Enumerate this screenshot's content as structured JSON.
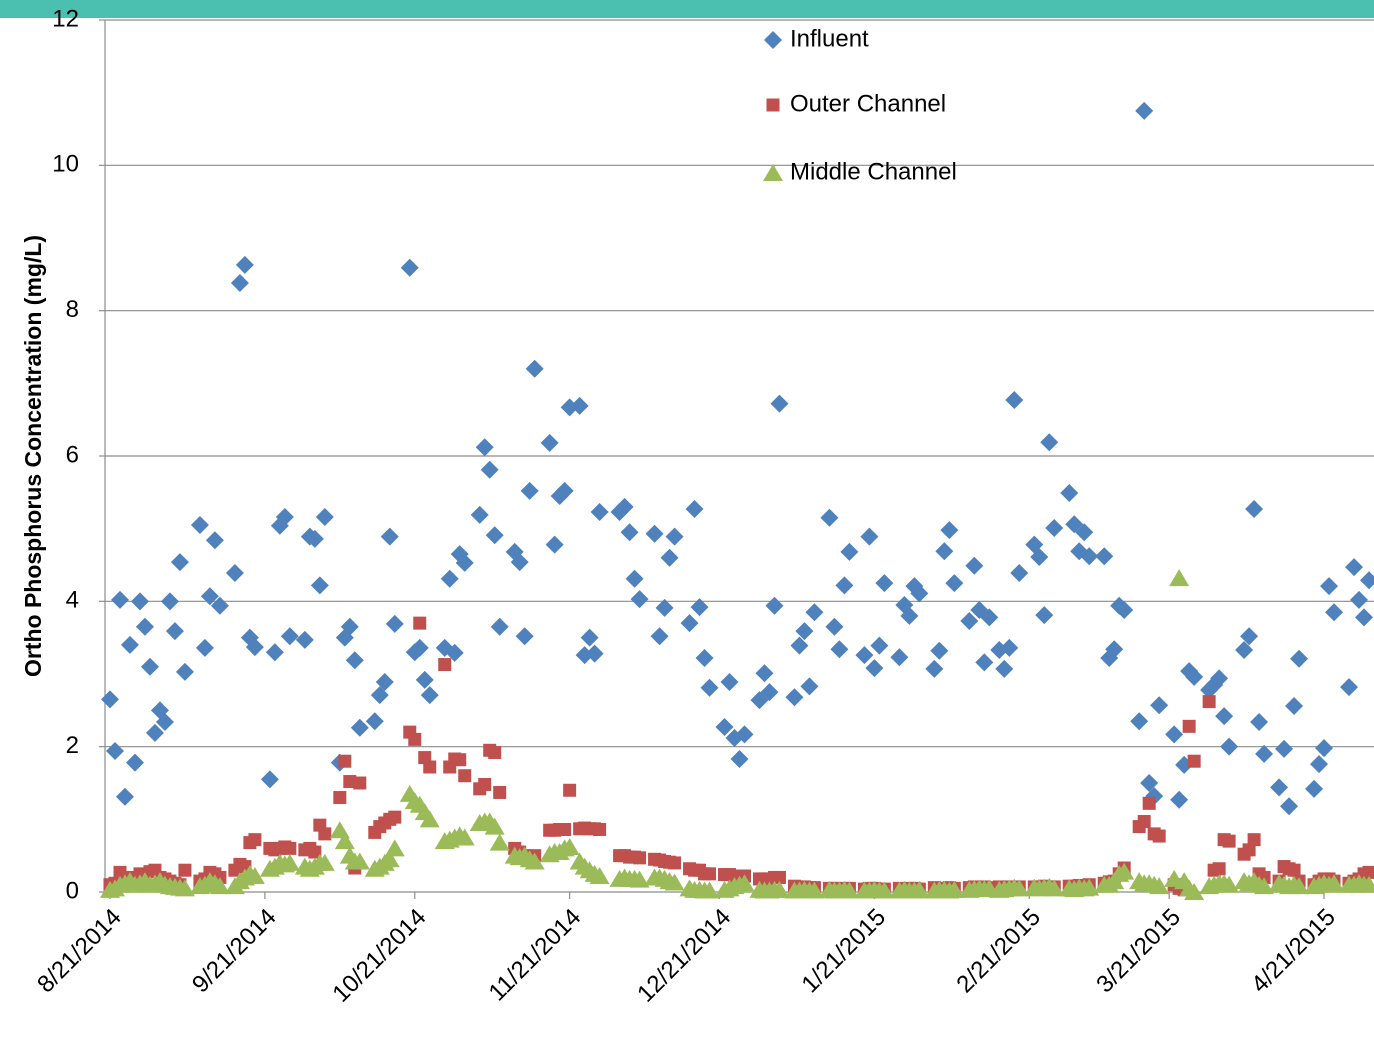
{
  "chart_data": {
    "type": "scatter",
    "y_label": "Ortho Phosphorus Concentration (mg/L)",
    "xlim": [
      "8/20/2014",
      "5/1/2015"
    ],
    "xticks": [
      "8/21/2014",
      "9/21/2014",
      "10/21/2014",
      "11/21/2014",
      "12/21/2014",
      "1/21/2015",
      "2/21/2015",
      "3/21/2015",
      "4/21/2015"
    ],
    "ylim": [
      0,
      12
    ],
    "yticks": [
      0,
      2,
      4,
      6,
      8,
      10,
      12
    ],
    "grid": true,
    "x": [
      "8/21/2014",
      "8/22/2014",
      "8/23/2014",
      "8/24/2014",
      "8/25/2014",
      "8/26/2014",
      "8/27/2014",
      "8/28/2014",
      "8/29/2014",
      "8/30/2014",
      "8/31/2014",
      "9/1/2014",
      "9/2/2014",
      "9/3/2014",
      "9/4/2014",
      "9/5/2014",
      "9/8/2014",
      "9/9/2014",
      "9/10/2014",
      "9/11/2014",
      "9/12/2014",
      "9/15/2014",
      "9/16/2014",
      "9/17/2014",
      "9/18/2014",
      "9/19/2014",
      "9/22/2014",
      "9/23/2014",
      "9/24/2014",
      "9/25/2014",
      "9/26/2014",
      "9/29/2014",
      "9/30/2014",
      "10/1/2014",
      "10/2/2014",
      "10/3/2014",
      "10/6/2014",
      "10/7/2014",
      "10/8/2014",
      "10/9/2014",
      "10/10/2014",
      "10/13/2014",
      "10/14/2014",
      "10/15/2014",
      "10/16/2014",
      "10/17/2014",
      "10/20/2014",
      "10/21/2014",
      "10/22/2014",
      "10/23/2014",
      "10/24/2014",
      "10/27/2014",
      "10/28/2014",
      "10/29/2014",
      "10/30/2014",
      "10/31/2014",
      "11/3/2014",
      "11/4/2014",
      "11/5/2014",
      "11/6/2014",
      "11/7/2014",
      "11/10/2014",
      "11/11/2014",
      "11/12/2014",
      "11/13/2014",
      "11/14/2014",
      "11/17/2014",
      "11/18/2014",
      "11/19/2014",
      "11/20/2014",
      "11/21/2014",
      "11/23/2014",
      "11/24/2014",
      "11/25/2014",
      "11/26/2014",
      "11/27/2014",
      "12/1/2014",
      "12/2/2014",
      "12/3/2014",
      "12/4/2014",
      "12/5/2014",
      "12/8/2014",
      "12/9/2014",
      "12/10/2014",
      "12/11/2014",
      "12/12/2014",
      "12/15/2014",
      "12/16/2014",
      "12/17/2014",
      "12/18/2014",
      "12/19/2014",
      "12/22/2014",
      "12/23/2014",
      "12/24/2014",
      "12/25/2014",
      "12/26/2014",
      "12/29/2014",
      "12/30/2014",
      "12/31/2014",
      "1/1/2015",
      "1/2/2015",
      "1/5/2015",
      "1/6/2015",
      "1/7/2015",
      "1/8/2015",
      "1/9/2015",
      "1/12/2015",
      "1/13/2015",
      "1/14/2015",
      "1/15/2015",
      "1/16/2015",
      "1/19/2015",
      "1/20/2015",
      "1/21/2015",
      "1/22/2015",
      "1/23/2015",
      "1/26/2015",
      "1/27/2015",
      "1/28/2015",
      "1/29/2015",
      "1/30/2015",
      "2/2/2015",
      "2/3/2015",
      "2/4/2015",
      "2/5/2015",
      "2/6/2015",
      "2/9/2015",
      "2/10/2015",
      "2/11/2015",
      "2/12/2015",
      "2/13/2015",
      "2/15/2015",
      "2/16/2015",
      "2/17/2015",
      "2/18/2015",
      "2/19/2015",
      "2/22/2015",
      "2/23/2015",
      "2/24/2015",
      "2/25/2015",
      "2/26/2015",
      "3/1/2015",
      "3/2/2015",
      "3/3/2015",
      "3/4/2015",
      "3/5/2015",
      "3/8/2015",
      "3/9/2015",
      "3/10/2015",
      "3/11/2015",
      "3/12/2015",
      "3/15/2015",
      "3/16/2015",
      "3/17/2015",
      "3/18/2015",
      "3/19/2015",
      "3/22/2015",
      "3/23/2015",
      "3/24/2015",
      "3/25/2015",
      "3/26/2015",
      "3/29/2015",
      "3/30/2015",
      "3/31/2015",
      "4/1/2015",
      "4/2/2015",
      "4/5/2015",
      "4/6/2015",
      "4/7/2015",
      "4/8/2015",
      "4/9/2015",
      "4/12/2015",
      "4/13/2015",
      "4/14/2015",
      "4/15/2015",
      "4/16/2015",
      "4/19/2015",
      "4/20/2015",
      "4/21/2015",
      "4/22/2015",
      "4/23/2015",
      "4/26/2015",
      "4/27/2015",
      "4/28/2015",
      "4/29/2015",
      "4/30/2015"
    ],
    "series": [
      {
        "name": "Influent",
        "color": "#4f81bd",
        "marker": "diamond",
        "values": [
          2.65,
          1.94,
          4.02,
          1.31,
          3.4,
          1.78,
          4.0,
          3.65,
          3.1,
          2.19,
          2.5,
          2.34,
          4.0,
          3.59,
          4.54,
          3.03,
          5.05,
          3.36,
          4.07,
          4.84,
          3.94,
          4.39,
          8.38,
          8.63,
          3.5,
          3.37,
          1.55,
          3.3,
          5.04,
          5.16,
          3.52,
          3.47,
          4.89,
          4.86,
          4.22,
          5.16,
          1.78,
          3.5,
          3.65,
          3.19,
          2.26,
          2.35,
          2.71,
          2.89,
          4.89,
          3.69,
          8.59,
          3.3,
          3.36,
          2.92,
          2.71,
          3.36,
          4.31,
          3.29,
          4.65,
          4.53,
          5.19,
          6.12,
          5.81,
          4.91,
          3.65,
          4.68,
          4.54,
          3.52,
          5.52,
          7.2,
          6.18,
          4.78,
          5.45,
          5.52,
          6.67,
          6.69,
          3.26,
          3.5,
          3.28,
          5.23,
          5.23,
          5.3,
          4.95,
          4.31,
          4.03,
          4.93,
          3.52,
          3.91,
          4.6,
          4.89,
          3.7,
          5.27,
          3.92,
          3.22,
          2.81,
          2.27,
          2.89,
          2.12,
          1.83,
          2.17,
          2.64,
          3.01,
          2.75,
          3.94,
          6.72,
          2.68,
          3.39,
          3.59,
          2.83,
          3.85,
          5.15,
          3.65,
          3.34,
          4.22,
          4.68,
          3.26,
          4.89,
          3.08,
          3.39,
          4.25,
          3.23,
          3.95,
          3.8,
          4.21,
          4.11,
          3.07,
          3.32,
          4.69,
          4.98,
          4.25,
          3.73,
          4.49,
          3.88,
          3.16,
          3.78,
          3.33,
          3.07,
          3.36,
          6.77,
          4.39,
          4.78,
          4.61,
          3.81,
          6.19,
          5.01,
          5.49,
          5.06,
          4.69,
          4.95,
          4.62,
          4.62,
          3.22,
          3.34,
          3.94,
          3.88,
          2.35,
          10.75,
          1.5,
          1.32,
          2.57,
          2.17,
          1.27,
          1.75,
          3.04,
          2.96,
          2.78,
          2.85,
          2.94,
          2.42,
          2.0,
          3.33,
          3.52,
          5.27,
          2.34,
          1.9,
          1.44,
          1.97,
          1.18,
          2.56,
          3.21,
          1.42,
          1.76,
          1.98,
          4.21,
          3.85,
          2.82,
          4.47,
          4.02,
          3.78,
          4.29
        ]
      },
      {
        "name": "Outer Channel",
        "color": "#c0504d",
        "marker": "square",
        "values": [
          0.1,
          0.12,
          0.27,
          0.15,
          0.2,
          0.2,
          0.25,
          0.22,
          0.28,
          0.3,
          0.2,
          0.18,
          0.15,
          0.12,
          0.1,
          0.3,
          0.15,
          0.18,
          0.27,
          0.25,
          0.2,
          0.3,
          0.38,
          0.35,
          0.68,
          0.72,
          0.6,
          0.58,
          0.6,
          0.62,
          0.6,
          0.58,
          0.6,
          0.55,
          0.92,
          0.8,
          1.3,
          1.8,
          1.52,
          0.33,
          1.5,
          0.82,
          0.9,
          0.95,
          1.0,
          1.03,
          2.2,
          2.1,
          3.7,
          1.85,
          1.72,
          3.13,
          1.72,
          1.83,
          1.82,
          1.6,
          1.42,
          1.48,
          1.95,
          1.92,
          1.37,
          0.6,
          0.55,
          0.5,
          0.48,
          0.5,
          0.85,
          0.85,
          0.86,
          0.86,
          1.4,
          0.87,
          0.88,
          0.87,
          0.87,
          0.86,
          0.5,
          0.5,
          0.48,
          0.48,
          0.47,
          0.45,
          0.44,
          0.42,
          0.41,
          0.4,
          0.32,
          0.3,
          0.3,
          0.25,
          0.25,
          0.24,
          0.24,
          0.22,
          0.22,
          0.22,
          0.18,
          0.18,
          0.18,
          0.2,
          0.2,
          0.08,
          0.07,
          0.07,
          0.06,
          0.06,
          0.05,
          0.05,
          0.04,
          0.05,
          0.05,
          0.04,
          0.05,
          0.05,
          0.04,
          0.04,
          0.05,
          0.04,
          0.05,
          0.05,
          0.04,
          0.06,
          0.05,
          0.05,
          0.06,
          0.05,
          0.06,
          0.07,
          0.06,
          0.07,
          0.06,
          0.07,
          0.06,
          0.07,
          0.06,
          0.07,
          0.07,
          0.07,
          0.08,
          0.07,
          0.07,
          0.08,
          0.08,
          0.09,
          0.08,
          0.1,
          0.12,
          0.14,
          0.15,
          0.25,
          0.33,
          0.9,
          0.97,
          1.22,
          0.8,
          0.77,
          0.1,
          0.05,
          0.03,
          2.28,
          1.8,
          2.62,
          0.3,
          0.32,
          0.72,
          0.7,
          0.52,
          0.58,
          0.72,
          0.25,
          0.2,
          0.15,
          0.35,
          0.32,
          0.3,
          0.15,
          0.1,
          0.15,
          0.18,
          0.18,
          0.15,
          0.12,
          0.15,
          0.18,
          0.25,
          0.27
        ]
      },
      {
        "name": "Middle Channel",
        "color": "#9bbb59",
        "marker": "triangle",
        "values": [
          0.03,
          0.05,
          0.1,
          0.12,
          0.15,
          0.1,
          0.12,
          0.15,
          0.1,
          0.12,
          0.15,
          0.1,
          0.08,
          0.07,
          0.06,
          0.05,
          0.08,
          0.1,
          0.15,
          0.12,
          0.08,
          0.08,
          0.15,
          0.2,
          0.25,
          0.22,
          0.32,
          0.35,
          0.4,
          0.38,
          0.4,
          0.35,
          0.32,
          0.35,
          0.4,
          0.4,
          0.85,
          0.7,
          0.5,
          0.42,
          0.42,
          0.32,
          0.35,
          0.4,
          0.45,
          0.6,
          1.35,
          1.25,
          1.2,
          1.1,
          1.0,
          0.7,
          0.72,
          0.75,
          0.78,
          0.75,
          0.95,
          0.97,
          0.97,
          0.9,
          0.68,
          0.5,
          0.48,
          0.5,
          0.45,
          0.42,
          0.52,
          0.55,
          0.55,
          0.6,
          0.62,
          0.42,
          0.35,
          0.3,
          0.25,
          0.22,
          0.18,
          0.2,
          0.18,
          0.18,
          0.17,
          0.2,
          0.2,
          0.18,
          0.15,
          0.13,
          0.05,
          0.03,
          0.03,
          0.02,
          0.02,
          0.03,
          0.05,
          0.08,
          0.1,
          0.12,
          0.03,
          0.02,
          0.02,
          0.03,
          0.03,
          0.02,
          0.02,
          0.03,
          0.02,
          0.02,
          0.03,
          0.02,
          0.02,
          0.03,
          0.02,
          0.02,
          0.02,
          0.03,
          0.02,
          0.02,
          0.02,
          0.03,
          0.02,
          0.02,
          0.03,
          0.02,
          0.03,
          0.03,
          0.02,
          0.03,
          0.03,
          0.04,
          0.05,
          0.04,
          0.05,
          0.03,
          0.04,
          0.05,
          0.06,
          0.05,
          0.06,
          0.05,
          0.06,
          0.07,
          0.05,
          0.05,
          0.04,
          0.06,
          0.05,
          0.06,
          0.1,
          0.1,
          0.15,
          0.25,
          0.28,
          0.15,
          0.12,
          0.12,
          0.1,
          0.08,
          0.18,
          4.32,
          0.15,
          0.05,
          0.0,
          0.08,
          0.1,
          0.12,
          0.12,
          0.1,
          0.15,
          0.12,
          0.15,
          0.1,
          0.08,
          0.12,
          0.1,
          0.08,
          0.1,
          0.08,
          0.08,
          0.1,
          0.12,
          0.1,
          0.12,
          0.1,
          0.1,
          0.12,
          0.1,
          0.1
        ]
      }
    ]
  }
}
